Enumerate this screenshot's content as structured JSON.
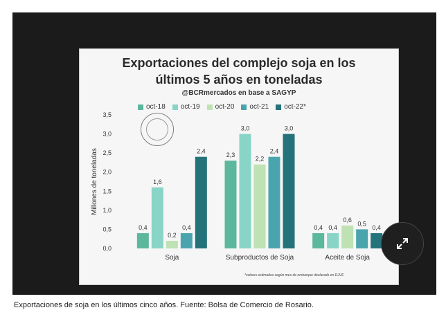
{
  "chart_data": {
    "type": "bar",
    "title": "Exportaciones del complejo soja en los últimos 5 años en toneladas",
    "title_line1": "Exportaciones del complejo soja en los",
    "title_line2": "últimos 5 años en toneladas",
    "subtitle": "@BCRmercados en base a SAGYP",
    "ylabel": "Millones de toneladas",
    "xlabel": "",
    "ylim": [
      0,
      3.5
    ],
    "yticks": [
      0.0,
      0.5,
      1.0,
      1.5,
      2.0,
      2.5,
      3.0,
      3.5
    ],
    "ytick_labels": [
      "0,0",
      "0,5",
      "1,0",
      "1,5",
      "2,0",
      "2,5",
      "3,0",
      "3,5"
    ],
    "categories": [
      "Soja",
      "Subproductos de Soja",
      "Aceite de Soja"
    ],
    "series": [
      {
        "name": "oct-18",
        "color": "#5cb89d",
        "values": [
          0.4,
          2.3,
          0.4
        ],
        "labels": [
          "0,4",
          "2,3",
          "0,4"
        ]
      },
      {
        "name": "oct-19",
        "color": "#88d4c6",
        "values": [
          1.6,
          3.0,
          0.4
        ],
        "labels": [
          "1,6",
          "3,0",
          "0,4"
        ]
      },
      {
        "name": "oct-20",
        "color": "#bfe2b4",
        "values": [
          0.2,
          2.2,
          0.6
        ],
        "labels": [
          "0,2",
          "2,2",
          "0,6"
        ]
      },
      {
        "name": "oct-21",
        "color": "#4aa4ae",
        "values": [
          0.4,
          2.4,
          0.5
        ],
        "labels": [
          "0,4",
          "2,4",
          "0,5"
        ]
      },
      {
        "name": "oct-22*",
        "color": "#24727a",
        "values": [
          2.4,
          3.0,
          0.4
        ],
        "labels": [
          "2,4",
          "3,0",
          "0,4"
        ]
      }
    ],
    "footnote": "*valores estimados según mes de embarque declarado en DJVE",
    "legend_position": "top",
    "grid": false
  },
  "caption": "Exportaciones de soja en los últimos cinco años. Fuente: Bolsa de Comercio de Rosario.",
  "colors": {
    "frame_bg": "#1b1b1b",
    "card_bg": "#f6f6f6"
  },
  "icons": {
    "expand": "expand-arrows-icon",
    "seal": "bolsa-de-comercio-seal-icon"
  }
}
